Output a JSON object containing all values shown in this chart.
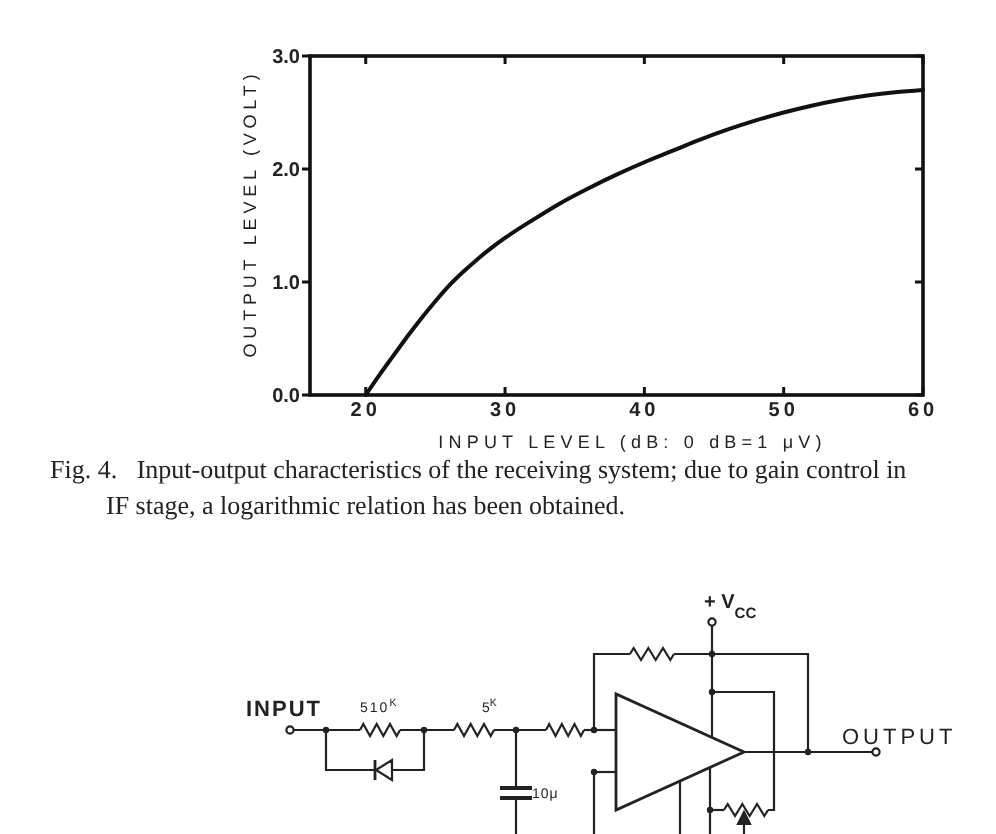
{
  "chart_data": {
    "type": "line",
    "xlabel": "INPUT LEVEL (dB: 0 dB=1 μV)",
    "ylabel": "OUTPUT LEVEL (VOLT)",
    "annotations": [
      "Fig. 4.   Input-output characteristics of the receiving system; due to gain control in IF stage, a logarithmic relation has been obtained.",
      "INPUT",
      "510$^{K}$",
      "5$^{K}$",
      "10μ",
      "+ V$_{CC}$",
      "OUTPUT"
    ],
    "x": [
      20,
      21,
      22,
      23,
      24,
      25,
      26,
      27,
      28,
      29,
      30,
      32,
      34,
      36,
      38,
      40,
      42,
      44,
      46,
      48,
      50,
      52,
      54,
      56,
      58,
      60
    ],
    "series": [
      {
        "color": "#111111",
        "values": [
          0,
          0.18,
          0.35,
          0.52,
          0.68,
          0.83,
          0.97,
          1.09,
          1.2,
          1.3,
          1.39,
          1.55,
          1.7,
          1.83,
          1.95,
          2.06,
          2.16,
          2.26,
          2.35,
          2.43,
          2.5,
          2.56,
          2.61,
          2.65,
          2.68,
          2.7
        ]
      }
    ],
    "xlim": [
      16,
      60
    ],
    "xticks": [
      20,
      30,
      40,
      50,
      60
    ],
    "ylim": [
      0,
      3
    ],
    "yticks": [
      {
        "value": 0,
        "label": "0.0"
      },
      {
        "value": 1,
        "label": "1.0"
      },
      {
        "value": 2,
        "label": "2.0"
      },
      {
        "value": 3,
        "label": "3.0"
      }
    ]
  }
}
